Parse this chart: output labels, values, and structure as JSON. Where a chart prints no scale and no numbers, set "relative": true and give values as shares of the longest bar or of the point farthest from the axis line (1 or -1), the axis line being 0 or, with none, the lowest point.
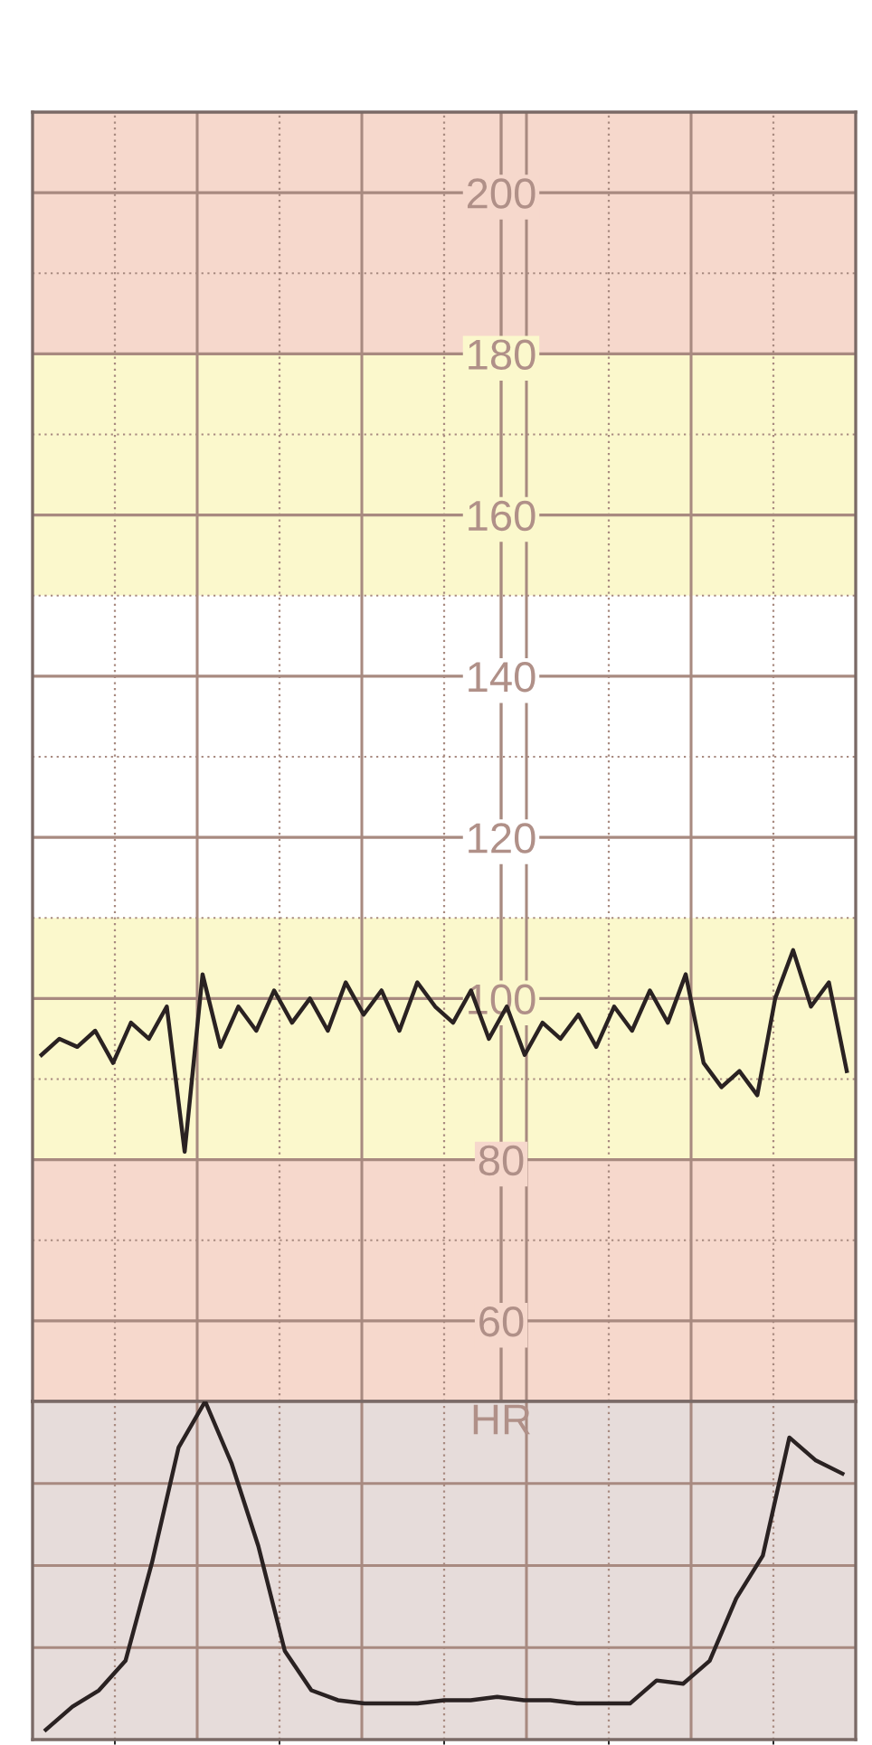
{
  "chart_data": [
    {
      "type": "line",
      "categories": [
        null,
        null,
        null,
        null,
        null,
        null,
        null,
        null,
        null,
        null,
        null,
        null,
        null,
        null,
        null,
        null,
        null,
        null,
        null,
        null,
        null,
        null,
        null,
        null,
        null,
        null,
        null,
        null,
        null,
        null,
        null,
        null,
        null,
        null,
        null,
        null,
        null,
        null,
        null,
        null,
        null,
        null,
        null,
        null,
        null,
        null
      ],
      "series": [
        {
          "color": "#2a2222",
          "values": [
            93,
            95,
            94,
            96,
            92,
            97,
            95,
            99,
            81,
            103,
            94,
            99,
            96,
            101,
            97,
            100,
            96,
            102,
            98,
            101,
            96,
            102,
            99,
            97,
            101,
            95,
            99,
            93,
            97,
            95,
            98,
            94,
            99,
            96,
            101,
            97,
            103,
            92,
            89,
            91,
            88,
            100,
            106,
            99,
            102,
            91
          ]
        }
      ],
      "ylim": [
        50,
        210
      ],
      "yticks": [
        60,
        80,
        100,
        120,
        140,
        160,
        180,
        200
      ],
      "grid": true,
      "tick_labels": "y",
      "bands": [
        {
          "axis": "y",
          "from": 180,
          "to": 210,
          "color": "#f6d8cc"
        },
        {
          "axis": "y",
          "from": 150,
          "to": 180,
          "color": "#fbf8cc"
        },
        {
          "axis": "y",
          "from": 110,
          "to": 150,
          "color": "#ffffff"
        },
        {
          "axis": "y",
          "from": 80,
          "to": 110,
          "color": "#fbf8cc"
        },
        {
          "axis": "y",
          "from": 50,
          "to": 80,
          "color": "#f6d8cc"
        }
      ],
      "annotations": [
        "HR"
      ]
    },
    {
      "type": "line",
      "relative": true,
      "categories": [
        null,
        null,
        null,
        null,
        null,
        null,
        null,
        null,
        null,
        null,
        null,
        null,
        null,
        null,
        null,
        null,
        null,
        null,
        null,
        null,
        null,
        null,
        null,
        null,
        null,
        null,
        null,
        null,
        null,
        null,
        null
      ],
      "series": [
        {
          "color": "#2a2222",
          "values": [
            0.0,
            0.07,
            0.12,
            0.21,
            0.51,
            0.86,
            1.0,
            0.81,
            0.56,
            0.24,
            0.12,
            0.09,
            0.08,
            0.08,
            0.08,
            0.09,
            0.09,
            0.1,
            0.09,
            0.09,
            0.08,
            0.08,
            0.08,
            0.15,
            0.14,
            0.21,
            0.4,
            0.53,
            0.89,
            0.82,
            0.78
          ]
        }
      ],
      "grid": true,
      "tick_labels": false
    }
  ]
}
